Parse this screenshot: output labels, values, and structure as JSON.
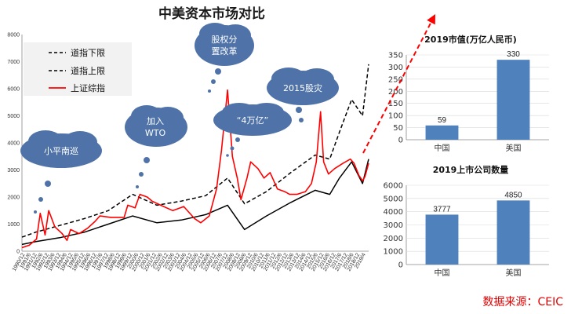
{
  "title": "中美资本市场对比",
  "source": "数据来源：CEIC",
  "colors": {
    "dow_lower": "#000000",
    "dow_upper": "#000000",
    "shanghai": "#ff0000",
    "bar": "#4f81bd",
    "bubble": "#4f73a8",
    "arrow": "#ff0000"
  },
  "chart_data": [
    {
      "type": "line",
      "title": "",
      "ylim": [
        0,
        8000
      ],
      "yticks": [
        0,
        1000,
        2000,
        3000,
        4000,
        5000,
        6000,
        7000,
        8000
      ],
      "xlim": [
        1990.9,
        2019.4
      ],
      "x_tick_labels": [
        "1990/12",
        "1991/6",
        "1991/12",
        "1992/6",
        "1992/12",
        "1993/6",
        "1993/12",
        "1994/6",
        "1994/12",
        "1995/6",
        "1995/12",
        "1996/6",
        "1996/12",
        "1997/6",
        "1997/12",
        "1998/6",
        "1998/12",
        "1999/6",
        "1999/12",
        "2000/6",
        "2000/12",
        "2001/6",
        "2001/12",
        "2002/6",
        "2002/12",
        "2003/6",
        "2003/12",
        "2004/6",
        "2004/12",
        "2005/6",
        "2005/12",
        "2006/6",
        "2006/12",
        "2007/6",
        "2007/12",
        "2008/6",
        "2008/12",
        "2009/6",
        "2009/12",
        "2010/6",
        "2010/12",
        "2011/6",
        "2011/12",
        "2012/6",
        "2012/12",
        "2013/6",
        "2013/12",
        "2014/6",
        "2014/12",
        "2015/6",
        "2015/12",
        "2016/6",
        "2016/12",
        "2017/6",
        "2017/12",
        "2018/6",
        "2018/12",
        "2019/4"
      ],
      "legend": {
        "placement": "top-left",
        "entries": [
          "道指下限",
          "道指上限",
          "上证综指"
        ]
      },
      "series": [
        {
          "name": "道指下限",
          "style": "dashed",
          "x": [
            1990.9,
            1992,
            1994,
            1996,
            1998,
            2000,
            2002,
            2004,
            2006,
            2007.8,
            2009.2,
            2011,
            2013,
            2015,
            2016.2,
            2017,
            2018,
            2018.9,
            2019.4
          ],
          "y": [
            520,
            700,
            950,
            1200,
            1500,
            2100,
            1700,
            1850,
            2050,
            2700,
            1750,
            2200,
            2900,
            3550,
            3400,
            4400,
            5600,
            5000,
            6900
          ]
        },
        {
          "name": "道指上限",
          "style": "solid",
          "x": [
            1990.9,
            1992,
            1994,
            1996,
            1998,
            2000,
            2002,
            2004,
            2006,
            2007.8,
            2009.2,
            2011,
            2013,
            2015,
            2016.2,
            2017,
            2018,
            2018.9,
            2019.4
          ],
          "y": [
            250,
            350,
            500,
            700,
            1000,
            1300,
            1050,
            1150,
            1350,
            1700,
            800,
            1300,
            1800,
            2250,
            2100,
            2700,
            3300,
            2500,
            3400
          ]
        },
        {
          "name": "上证综指",
          "style": "solid",
          "x": [
            1990.9,
            1991.5,
            1992.1,
            1992.4,
            1992.8,
            1993.1,
            1993.6,
            1994.2,
            1994.6,
            1994.9,
            1995.6,
            1996.3,
            1996.9,
            1997.3,
            1998.2,
            1999.3,
            1999.6,
            2000.2,
            2000.6,
            2001.2,
            2001.6,
            2002.3,
            2003.3,
            2004.2,
            2005.1,
            2005.6,
            2006.3,
            2006.9,
            2007.3,
            2007.8,
            2008.2,
            2008.6,
            2008.9,
            2009.4,
            2009.7,
            2010.3,
            2010.8,
            2011.3,
            2011.9,
            2012.5,
            2012.9,
            2013.5,
            2014.2,
            2014.7,
            2015.1,
            2015.45,
            2015.7,
            2016.1,
            2016.6,
            2017.3,
            2017.9,
            2018.2,
            2018.6,
            2018.9,
            2019.1,
            2019.4
          ],
          "y": [
            130,
            220,
            450,
            1400,
            600,
            1500,
            900,
            650,
            400,
            800,
            650,
            850,
            1100,
            1300,
            1250,
            1250,
            1700,
            1600,
            2100,
            2000,
            1850,
            1700,
            1500,
            1650,
            1200,
            1050,
            1300,
            2300,
            3700,
            5950,
            3500,
            2700,
            1900,
            2700,
            3300,
            3050,
            2700,
            2900,
            2300,
            2200,
            2100,
            2100,
            2200,
            2500,
            3300,
            5150,
            3300,
            2850,
            3050,
            3250,
            3400,
            3250,
            2800,
            2600,
            2750,
            3250
          ]
        }
      ],
      "annotations": [
        "小平南巡",
        "加入WTO",
        "股权分置改革",
        "“4万亿”",
        "2015股灾"
      ]
    },
    {
      "type": "bar",
      "title": "2019市值(万亿人民币)",
      "categories": [
        "中国",
        "美国"
      ],
      "values": [
        59,
        330
      ],
      "ylim": [
        0,
        350
      ],
      "yticks": [
        0,
        50,
        100,
        150,
        200,
        250,
        300,
        350
      ]
    },
    {
      "type": "bar",
      "title": "2019上市公司数量",
      "categories": [
        "中国",
        "美国"
      ],
      "values": [
        3777,
        4850
      ],
      "ylim": [
        0,
        6000
      ],
      "yticks": [
        0,
        1000,
        2000,
        3000,
        4000,
        5000,
        6000
      ]
    }
  ]
}
